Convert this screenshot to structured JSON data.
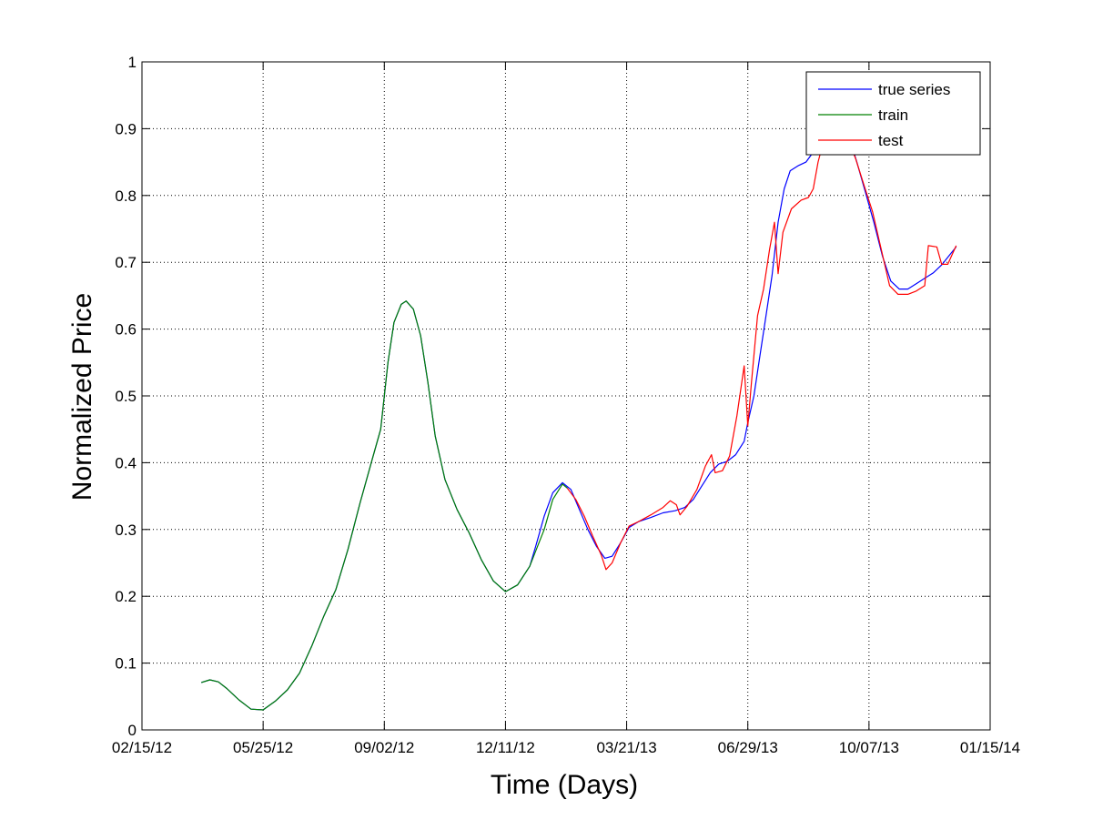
{
  "chart_data": {
    "type": "line",
    "xlabel": "Time (Days)",
    "ylabel": "Normalized Price",
    "x_ticks": [
      "02/15/12",
      "05/25/12",
      "09/02/12",
      "12/11/12",
      "03/21/13",
      "06/29/13",
      "10/07/13",
      "01/15/14"
    ],
    "y_ticks": [
      "0",
      "0.1",
      "0.2",
      "0.3",
      "0.4",
      "0.5",
      "0.6",
      "0.7",
      "0.8",
      "0.9",
      "1"
    ],
    "xlim": [
      "02/15/12",
      "01/15/14"
    ],
    "ylim": [
      0,
      1
    ],
    "grid": true,
    "legend_position": "top-right",
    "series": [
      {
        "name": "true series",
        "color": "#0000ff",
        "points": [
          [
            "04/04/12",
            0.071
          ],
          [
            "04/11/12",
            0.075
          ],
          [
            "04/18/12",
            0.072
          ],
          [
            "04/25/12",
            0.062
          ],
          [
            "05/05/12",
            0.045
          ],
          [
            "05/15/12",
            0.031
          ],
          [
            "05/25/12",
            0.03
          ],
          [
            "06/04/12",
            0.043
          ],
          [
            "06/14/12",
            0.06
          ],
          [
            "06/24/12",
            0.085
          ],
          [
            "07/04/12",
            0.125
          ],
          [
            "07/14/12",
            0.17
          ],
          [
            "07/24/12",
            0.21
          ],
          [
            "08/03/12",
            0.27
          ],
          [
            "08/13/12",
            0.34
          ],
          [
            "08/23/12",
            0.405
          ],
          [
            "08/30/12",
            0.45
          ],
          [
            "09/05/12",
            0.55
          ],
          [
            "09/10/12",
            0.61
          ],
          [
            "09/16/12",
            0.637
          ],
          [
            "09/20/12",
            0.642
          ],
          [
            "09/26/12",
            0.63
          ],
          [
            "10/02/12",
            0.59
          ],
          [
            "10/08/12",
            0.52
          ],
          [
            "10/14/12",
            0.44
          ],
          [
            "10/22/12",
            0.375
          ],
          [
            "11/01/12",
            0.33
          ],
          [
            "11/11/12",
            0.295
          ],
          [
            "11/21/12",
            0.255
          ],
          [
            "12/01/12",
            0.223
          ],
          [
            "12/11/12",
            0.207
          ],
          [
            "12/21/12",
            0.217
          ],
          [
            "12/31/12",
            0.245
          ],
          [
            "01/05/13",
            0.275
          ],
          [
            "01/12/13",
            0.32
          ],
          [
            "01/19/13",
            0.355
          ],
          [
            "01/27/13",
            0.37
          ],
          [
            "02/03/13",
            0.36
          ],
          [
            "02/10/13",
            0.33
          ],
          [
            "02/17/13",
            0.3
          ],
          [
            "02/24/13",
            0.275
          ],
          [
            "03/03/13",
            0.257
          ],
          [
            "03/09/13",
            0.26
          ],
          [
            "03/16/13",
            0.28
          ],
          [
            "03/23/13",
            0.303
          ],
          [
            "03/31/13",
            0.312
          ],
          [
            "04/10/13",
            0.318
          ],
          [
            "04/20/13",
            0.325
          ],
          [
            "04/30/13",
            0.328
          ],
          [
            "05/08/13",
            0.333
          ],
          [
            "05/15/13",
            0.345
          ],
          [
            "05/22/13",
            0.365
          ],
          [
            "05/29/13",
            0.385
          ],
          [
            "06/05/13",
            0.398
          ],
          [
            "06/12/13",
            0.402
          ],
          [
            "06/19/13",
            0.412
          ],
          [
            "06/26/13",
            0.432
          ],
          [
            "06/29/13",
            0.46
          ],
          [
            "07/04/13",
            0.5
          ],
          [
            "07/09/13",
            0.56
          ],
          [
            "07/14/13",
            0.62
          ],
          [
            "07/19/13",
            0.68
          ],
          [
            "07/24/13",
            0.76
          ],
          [
            "07/29/13",
            0.81
          ],
          [
            "08/03/13",
            0.837
          ],
          [
            "08/10/13",
            0.845
          ],
          [
            "08/16/13",
            0.85
          ],
          [
            "08/22/13",
            0.865
          ],
          [
            "08/28/13",
            0.88
          ],
          [
            "09/03/13",
            0.895
          ],
          [
            "09/10/13",
            0.905
          ],
          [
            "09/16/13",
            0.902
          ],
          [
            "09/21/13",
            0.885
          ],
          [
            "09/27/13",
            0.85
          ],
          [
            "10/04/13",
            0.805
          ],
          [
            "10/11/13",
            0.76
          ],
          [
            "10/18/13",
            0.71
          ],
          [
            "10/25/13",
            0.672
          ],
          [
            "11/01/13",
            0.66
          ],
          [
            "11/08/13",
            0.66
          ],
          [
            "11/15/13",
            0.668
          ],
          [
            "11/22/13",
            0.676
          ],
          [
            "11/29/13",
            0.684
          ],
          [
            "12/06/13",
            0.696
          ],
          [
            "12/13/13",
            0.712
          ],
          [
            "12/18/13",
            0.723
          ]
        ]
      },
      {
        "name": "train",
        "color": "#008000",
        "points": [
          [
            "04/04/12",
            0.071
          ],
          [
            "04/11/12",
            0.075
          ],
          [
            "04/18/12",
            0.072
          ],
          [
            "04/25/12",
            0.062
          ],
          [
            "05/05/12",
            0.045
          ],
          [
            "05/15/12",
            0.031
          ],
          [
            "05/25/12",
            0.03
          ],
          [
            "06/04/12",
            0.043
          ],
          [
            "06/14/12",
            0.06
          ],
          [
            "06/24/12",
            0.085
          ],
          [
            "07/04/12",
            0.125
          ],
          [
            "07/14/12",
            0.17
          ],
          [
            "07/24/12",
            0.21
          ],
          [
            "08/03/12",
            0.27
          ],
          [
            "08/13/12",
            0.34
          ],
          [
            "08/23/12",
            0.405
          ],
          [
            "08/30/12",
            0.45
          ],
          [
            "09/05/12",
            0.55
          ],
          [
            "09/10/12",
            0.61
          ],
          [
            "09/16/12",
            0.637
          ],
          [
            "09/20/12",
            0.642
          ],
          [
            "09/26/12",
            0.63
          ],
          [
            "10/02/12",
            0.59
          ],
          [
            "10/08/12",
            0.52
          ],
          [
            "10/14/12",
            0.44
          ],
          [
            "10/22/12",
            0.375
          ],
          [
            "11/01/12",
            0.33
          ],
          [
            "11/11/12",
            0.295
          ],
          [
            "11/21/12",
            0.255
          ],
          [
            "12/01/12",
            0.223
          ],
          [
            "12/11/12",
            0.207
          ],
          [
            "12/21/12",
            0.217
          ],
          [
            "12/31/12",
            0.245
          ],
          [
            "01/05/13",
            0.268
          ],
          [
            "01/12/13",
            0.3
          ],
          [
            "01/19/13",
            0.345
          ],
          [
            "01/27/13",
            0.368
          ],
          [
            "01/31/13",
            0.362
          ]
        ]
      },
      {
        "name": "test",
        "color": "#ff0000",
        "points": [
          [
            "01/31/13",
            0.362
          ],
          [
            "02/07/13",
            0.345
          ],
          [
            "02/14/13",
            0.32
          ],
          [
            "02/21/13",
            0.29
          ],
          [
            "02/28/13",
            0.262
          ],
          [
            "03/04/13",
            0.24
          ],
          [
            "03/09/13",
            0.25
          ],
          [
            "03/16/13",
            0.28
          ],
          [
            "03/23/13",
            0.305
          ],
          [
            "03/31/13",
            0.312
          ],
          [
            "04/10/13",
            0.322
          ],
          [
            "04/20/13",
            0.333
          ],
          [
            "04/26/13",
            0.343
          ],
          [
            "05/01/13",
            0.337
          ],
          [
            "05/04/13",
            0.322
          ],
          [
            "05/10/13",
            0.335
          ],
          [
            "05/18/13",
            0.36
          ],
          [
            "05/25/13",
            0.395
          ],
          [
            "05/30/13",
            0.412
          ],
          [
            "06/02/13",
            0.385
          ],
          [
            "06/08/13",
            0.388
          ],
          [
            "06/14/13",
            0.41
          ],
          [
            "06/20/13",
            0.47
          ],
          [
            "06/26/13",
            0.545
          ],
          [
            "06/29/13",
            0.455
          ],
          [
            "07/02/13",
            0.52
          ],
          [
            "07/07/13",
            0.62
          ],
          [
            "07/12/13",
            0.66
          ],
          [
            "07/17/13",
            0.72
          ],
          [
            "07/21/13",
            0.76
          ],
          [
            "07/24/13",
            0.683
          ],
          [
            "07/28/13",
            0.745
          ],
          [
            "08/04/13",
            0.78
          ],
          [
            "08/12/13",
            0.793
          ],
          [
            "08/18/13",
            0.797
          ],
          [
            "08/22/13",
            0.81
          ],
          [
            "08/26/13",
            0.85
          ],
          [
            "08/30/13",
            0.878
          ],
          [
            "09/05/13",
            0.89
          ],
          [
            "09/13/13",
            0.898
          ],
          [
            "09/20/13",
            0.882
          ],
          [
            "09/26/13",
            0.855
          ],
          [
            "10/03/13",
            0.815
          ],
          [
            "10/10/13",
            0.775
          ],
          [
            "10/17/13",
            0.72
          ],
          [
            "10/24/13",
            0.665
          ],
          [
            "10/31/13",
            0.652
          ],
          [
            "11/08/13",
            0.652
          ],
          [
            "11/15/13",
            0.657
          ],
          [
            "11/22/13",
            0.665
          ],
          [
            "11/25/13",
            0.725
          ],
          [
            "12/02/13",
            0.723
          ],
          [
            "12/06/13",
            0.697
          ],
          [
            "12/11/13",
            0.697
          ],
          [
            "12/18/13",
            0.725
          ]
        ]
      }
    ]
  }
}
